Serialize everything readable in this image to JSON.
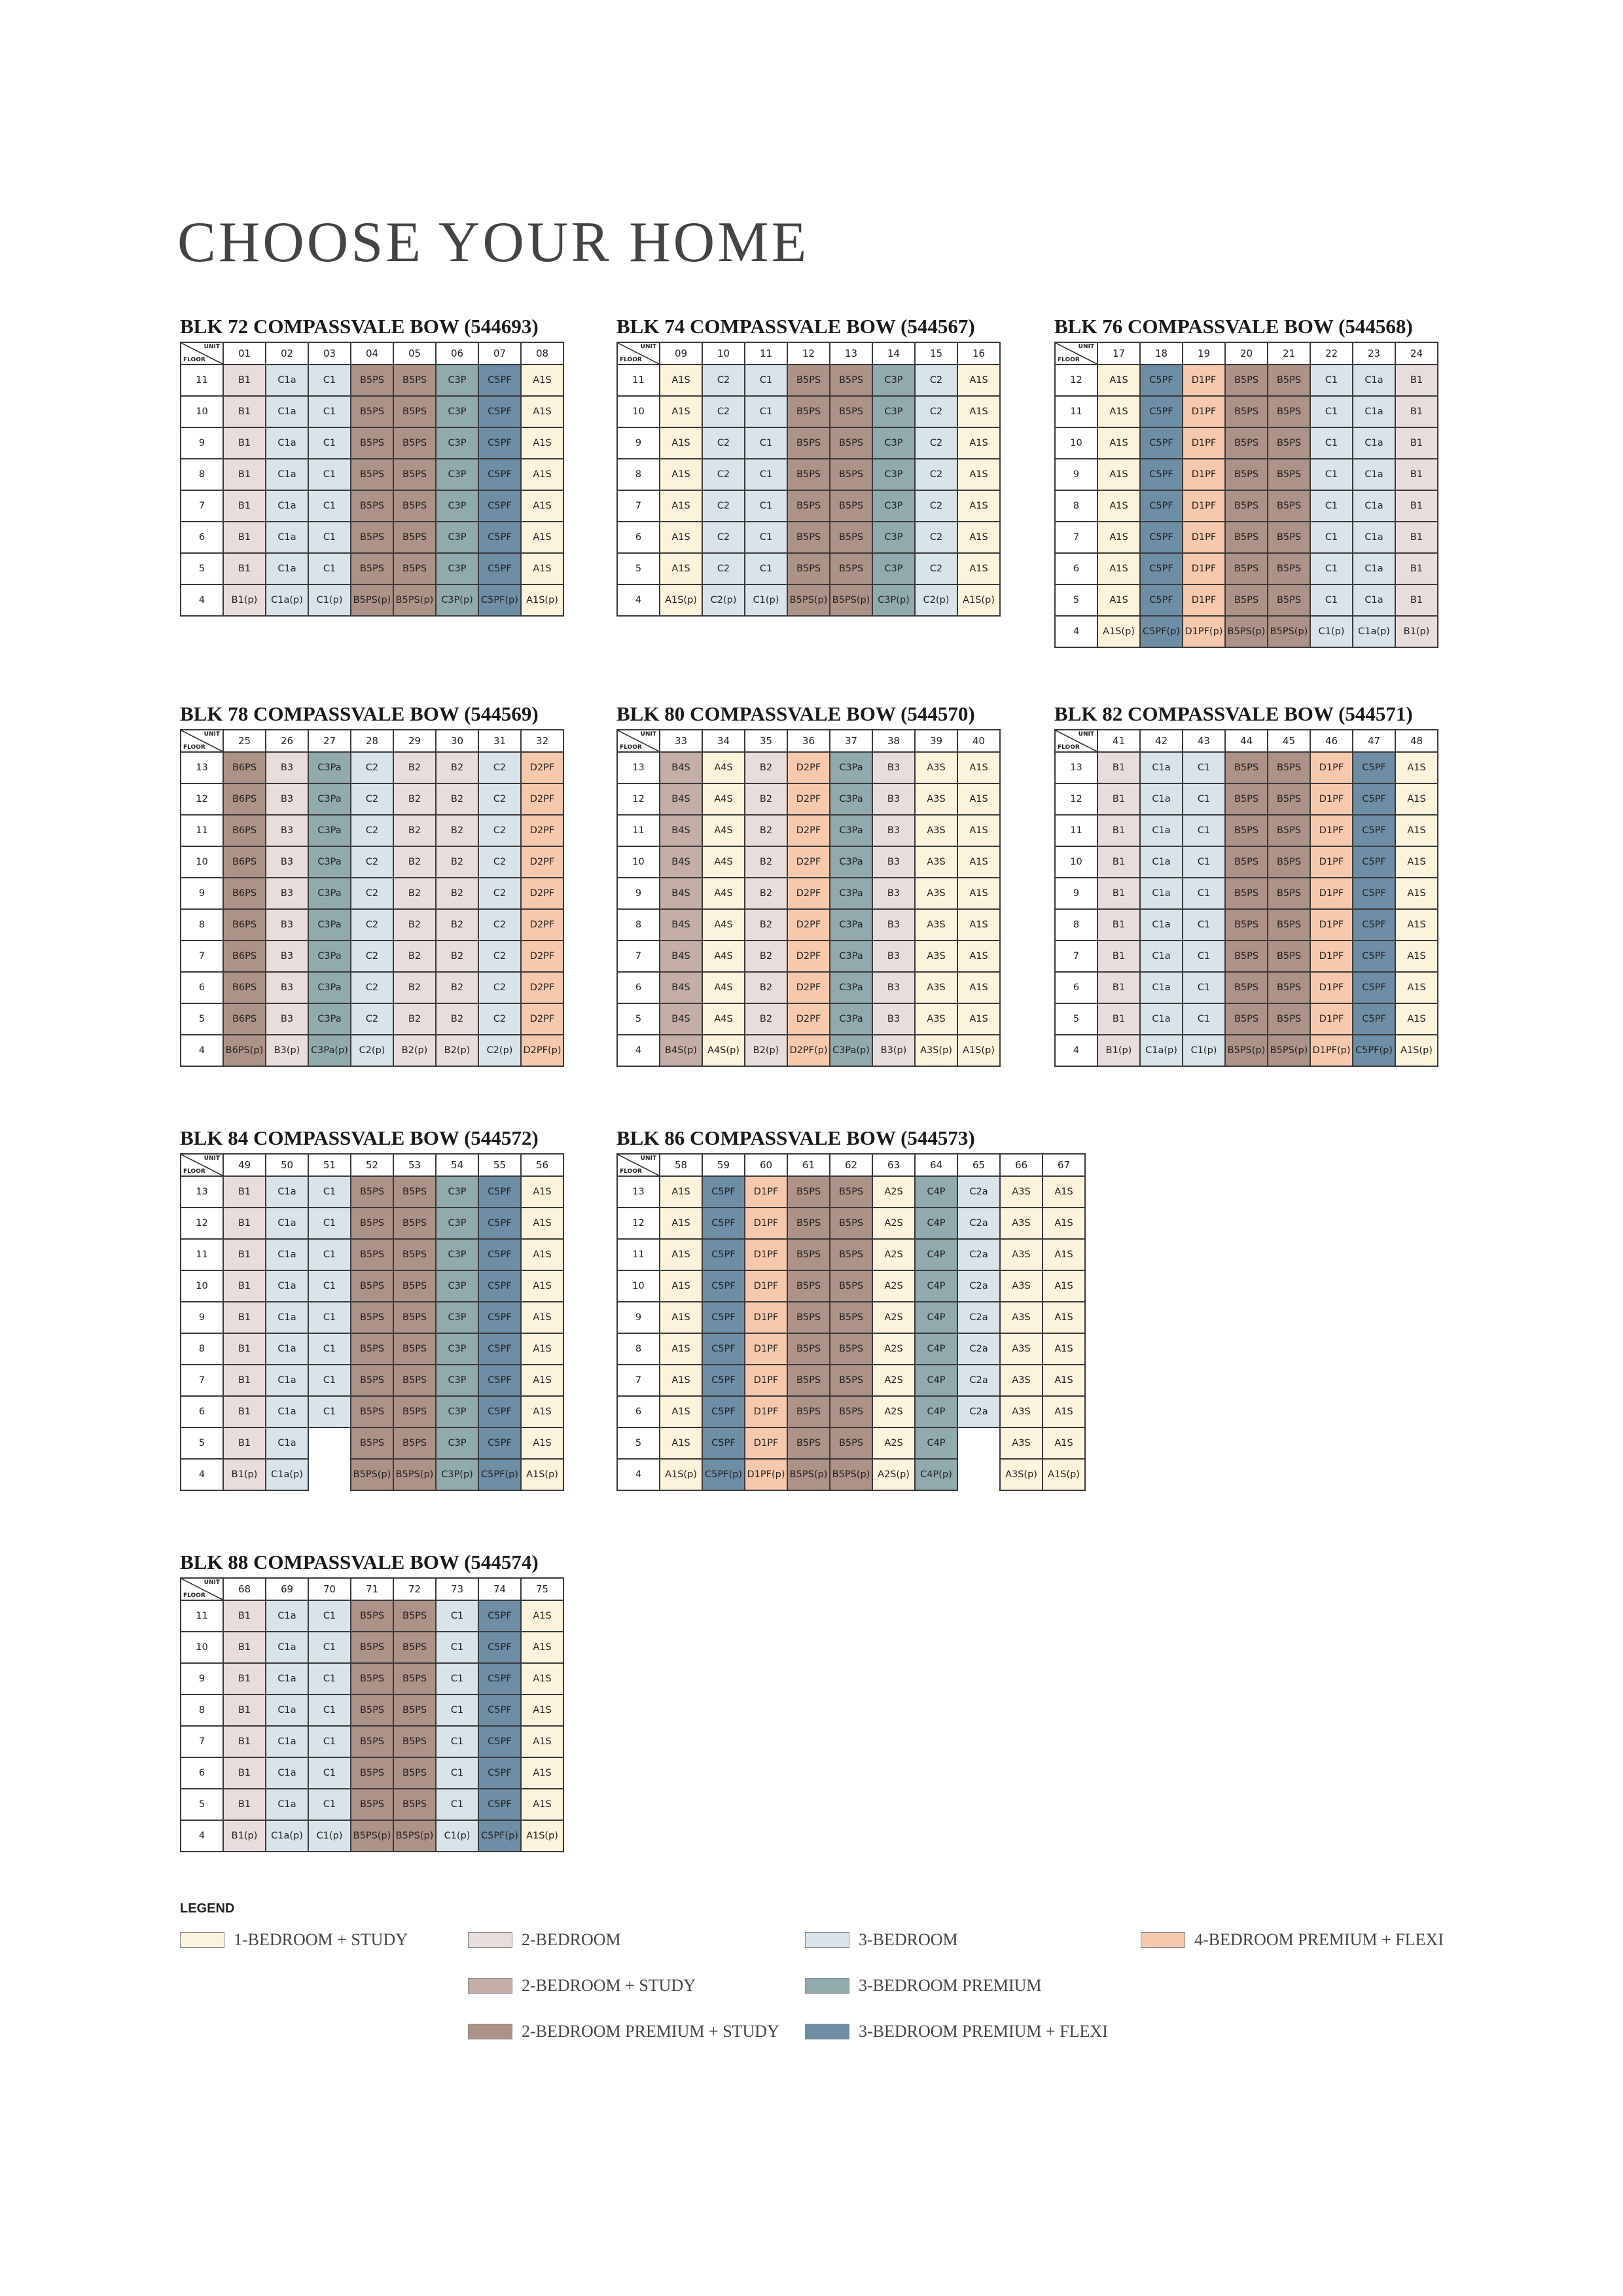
{
  "title": "CHOOSE YOUR HOME",
  "header_unit": "UNIT",
  "header_floor": "FLOOR",
  "legend": {
    "title": "LEGEND",
    "items": [
      {
        "key": "1s",
        "label": "1-BEDROOM + STUDY",
        "color": "#fbf3dc"
      },
      {
        "key": "2b",
        "label": "2-BEDROOM",
        "color": "#e7ddda"
      },
      {
        "key": "3b",
        "label": "3-BEDROOM",
        "color": "#d8e4ea"
      },
      {
        "key": "4bpf",
        "label": "4-BEDROOM PREMIUM + FLEXI",
        "color": "#f6c9ad"
      },
      {
        "key": "2bs",
        "label": "2-BEDROOM + STUDY",
        "color": "#c4aea6"
      },
      {
        "key": "3bp",
        "label": "3-BEDROOM PREMIUM",
        "color": "#91aaae"
      },
      {
        "key": "2bps",
        "label": "2-BEDROOM PREMIUM + STUDY",
        "color": "#ad9287"
      },
      {
        "key": "3bpf",
        "label": "3-BEDROOM PREMIUM + FLEXI",
        "color": "#6e8ea6"
      }
    ]
  },
  "blocks": [
    {
      "title": "BLK 72 COMPASSVALE BOW (544693)",
      "units": [
        "01",
        "02",
        "03",
        "04",
        "05",
        "06",
        "07",
        "08"
      ],
      "types": [
        "B1",
        "C1a",
        "C1",
        "B5PS",
        "B5PS",
        "C3P",
        "C5PF",
        "A1S"
      ],
      "classes": [
        "2b",
        "3b",
        "3b",
        "2bps",
        "2bps",
        "3bp",
        "3bpf",
        "1s"
      ],
      "floors": [
        "11",
        "10",
        "9",
        "8",
        "7",
        "6",
        "5",
        "4"
      ],
      "missing": []
    },
    {
      "title": "BLK 74 COMPASSVALE BOW (544567)",
      "units": [
        "09",
        "10",
        "11",
        "12",
        "13",
        "14",
        "15",
        "16"
      ],
      "types": [
        "A1S",
        "C2",
        "C1",
        "B5PS",
        "B5PS",
        "C3P",
        "C2",
        "A1S"
      ],
      "classes": [
        "1s",
        "3b",
        "3b",
        "2bps",
        "2bps",
        "3bp",
        "3b",
        "1s"
      ],
      "floors": [
        "11",
        "10",
        "9",
        "8",
        "7",
        "6",
        "5",
        "4"
      ],
      "missing": []
    },
    {
      "title": "BLK 76 COMPASSVALE BOW (544568)",
      "units": [
        "17",
        "18",
        "19",
        "20",
        "21",
        "22",
        "23",
        "24"
      ],
      "types": [
        "A1S",
        "C5PF",
        "D1PF",
        "B5PS",
        "B5PS",
        "C1",
        "C1a",
        "B1"
      ],
      "classes": [
        "1s",
        "3bpf",
        "4bpf",
        "2bps",
        "2bps",
        "3b",
        "3b",
        "2b"
      ],
      "floors": [
        "12",
        "11",
        "10",
        "9",
        "8",
        "7",
        "6",
        "5",
        "4"
      ],
      "missing": []
    },
    {
      "title": "BLK 78 COMPASSVALE BOW (544569)",
      "units": [
        "25",
        "26",
        "27",
        "28",
        "29",
        "30",
        "31",
        "32"
      ],
      "types": [
        "B6PS",
        "B3",
        "C3Pa",
        "C2",
        "B2",
        "B2",
        "C2",
        "D2PF"
      ],
      "classes": [
        "2bps",
        "2b",
        "3bp",
        "3b",
        "2b",
        "2b",
        "3b",
        "4bpf"
      ],
      "floors": [
        "13",
        "12",
        "11",
        "10",
        "9",
        "8",
        "7",
        "6",
        "5",
        "4"
      ],
      "missing": []
    },
    {
      "title": "BLK 80 COMPASSVALE BOW (544570)",
      "units": [
        "33",
        "34",
        "35",
        "36",
        "37",
        "38",
        "39",
        "40"
      ],
      "types": [
        "B4S",
        "A4S",
        "B2",
        "D2PF",
        "C3Pa",
        "B3",
        "A3S",
        "A1S"
      ],
      "classes": [
        "2bs",
        "1s",
        "2b",
        "4bpf",
        "3bp",
        "2b",
        "1s",
        "1s"
      ],
      "floors": [
        "13",
        "12",
        "11",
        "10",
        "9",
        "8",
        "7",
        "6",
        "5",
        "4"
      ],
      "missing": []
    },
    {
      "title": "BLK 82 COMPASSVALE BOW (544571)",
      "units": [
        "41",
        "42",
        "43",
        "44",
        "45",
        "46",
        "47",
        "48"
      ],
      "types": [
        "B1",
        "C1a",
        "C1",
        "B5PS",
        "B5PS",
        "D1PF",
        "C5PF",
        "A1S"
      ],
      "classes": [
        "2b",
        "3b",
        "3b",
        "2bps",
        "2bps",
        "4bpf",
        "3bpf",
        "1s"
      ],
      "floors": [
        "13",
        "12",
        "11",
        "10",
        "9",
        "8",
        "7",
        "6",
        "5",
        "4"
      ],
      "missing": []
    },
    {
      "title": "BLK 84 COMPASSVALE BOW (544572)",
      "units": [
        "49",
        "50",
        "51",
        "52",
        "53",
        "54",
        "55",
        "56"
      ],
      "types": [
        "B1",
        "C1a",
        "C1",
        "B5PS",
        "B5PS",
        "C3P",
        "C5PF",
        "A1S"
      ],
      "classes": [
        "2b",
        "3b",
        "3b",
        "2bps",
        "2bps",
        "3bp",
        "3bpf",
        "1s"
      ],
      "floors": [
        "13",
        "12",
        "11",
        "10",
        "9",
        "8",
        "7",
        "6",
        "5",
        "4"
      ],
      "missing": [
        [
          8,
          2
        ],
        [
          9,
          2
        ]
      ]
    },
    {
      "title": "BLK 86 COMPASSVALE BOW (544573)",
      "units": [
        "58",
        "59",
        "60",
        "61",
        "62",
        "63",
        "64",
        "65",
        "66",
        "67"
      ],
      "types": [
        "A1S",
        "C5PF",
        "D1PF",
        "B5PS",
        "B5PS",
        "A2S",
        "C4P",
        "C2a",
        "A3S",
        "A1S"
      ],
      "classes": [
        "1s",
        "3bpf",
        "4bpf",
        "2bps",
        "2bps",
        "1s",
        "3bp",
        "3b",
        "1s",
        "1s"
      ],
      "floors": [
        "13",
        "12",
        "11",
        "10",
        "9",
        "8",
        "7",
        "6",
        "5",
        "4"
      ],
      "missing": [
        [
          8,
          7
        ],
        [
          9,
          7
        ]
      ]
    },
    {
      "title": "BLK 88 COMPASSVALE BOW (544574)",
      "units": [
        "68",
        "69",
        "70",
        "71",
        "72",
        "73",
        "74",
        "75"
      ],
      "types": [
        "B1",
        "C1a",
        "C1",
        "B5PS",
        "B5PS",
        "C1",
        "C5PF",
        "A1S"
      ],
      "classes": [
        "2b",
        "3b",
        "3b",
        "2bps",
        "2bps",
        "3b",
        "3bpf",
        "1s"
      ],
      "floors": [
        "11",
        "10",
        "9",
        "8",
        "7",
        "6",
        "5",
        "4"
      ],
      "missing": []
    }
  ]
}
